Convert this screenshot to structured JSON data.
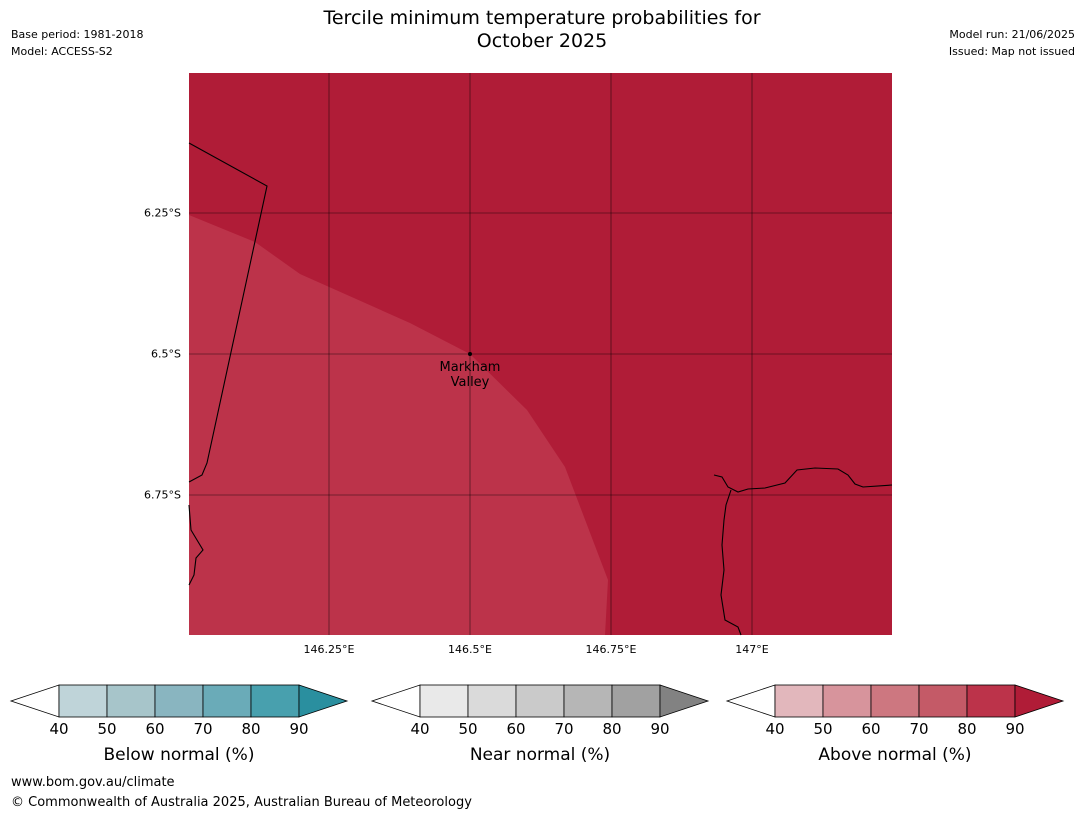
{
  "header": {
    "title_line1": "Tercile minimum temperature probabilities for",
    "title_line2": "October 2025",
    "base_period": "Base period: 1981-2018",
    "model": "Model: ACCESS-S2",
    "model_run": "Model run: 21/06/2025",
    "issued": "Issued: Map not issued"
  },
  "map": {
    "latitude_labels": [
      "6.25°S",
      "6.5°S",
      "6.75°S"
    ],
    "longitude_labels": [
      "146.25°E",
      "146.5°E",
      "146.75°E",
      "147°E"
    ],
    "place": {
      "name_line1": "Markham",
      "name_line2": "Valley"
    },
    "colors": {
      "above_90": "#b01c37",
      "above_80": "#bc334a"
    }
  },
  "legends": [
    {
      "title": "Below normal (%)",
      "ticks": [
        "40",
        "50",
        "60",
        "70",
        "80",
        "90"
      ],
      "colors": [
        "#ffffff",
        "#bfd4d9",
        "#a7c5ca",
        "#89b5c0",
        "#6aabb8",
        "#48a0ae",
        "#2a8f9f"
      ]
    },
    {
      "title": "Near normal (%)",
      "ticks": [
        "40",
        "50",
        "60",
        "70",
        "80",
        "90"
      ],
      "colors": [
        "#ffffff",
        "#e9e9e9",
        "#dadada",
        "#cacaca",
        "#b6b6b6",
        "#a1a1a1",
        "#828282"
      ]
    },
    {
      "title": "Above normal (%)",
      "ticks": [
        "40",
        "50",
        "60",
        "70",
        "80",
        "90"
      ],
      "colors": [
        "#ffffff",
        "#e2b7bc",
        "#d7949c",
        "#cd7780",
        "#c45a67",
        "#bc334a",
        "#b01c37"
      ]
    }
  ],
  "footer": {
    "url": "www.bom.gov.au/climate",
    "copyright": "© Commonwealth of Australia 2025, Australian Bureau of Meteorology"
  }
}
